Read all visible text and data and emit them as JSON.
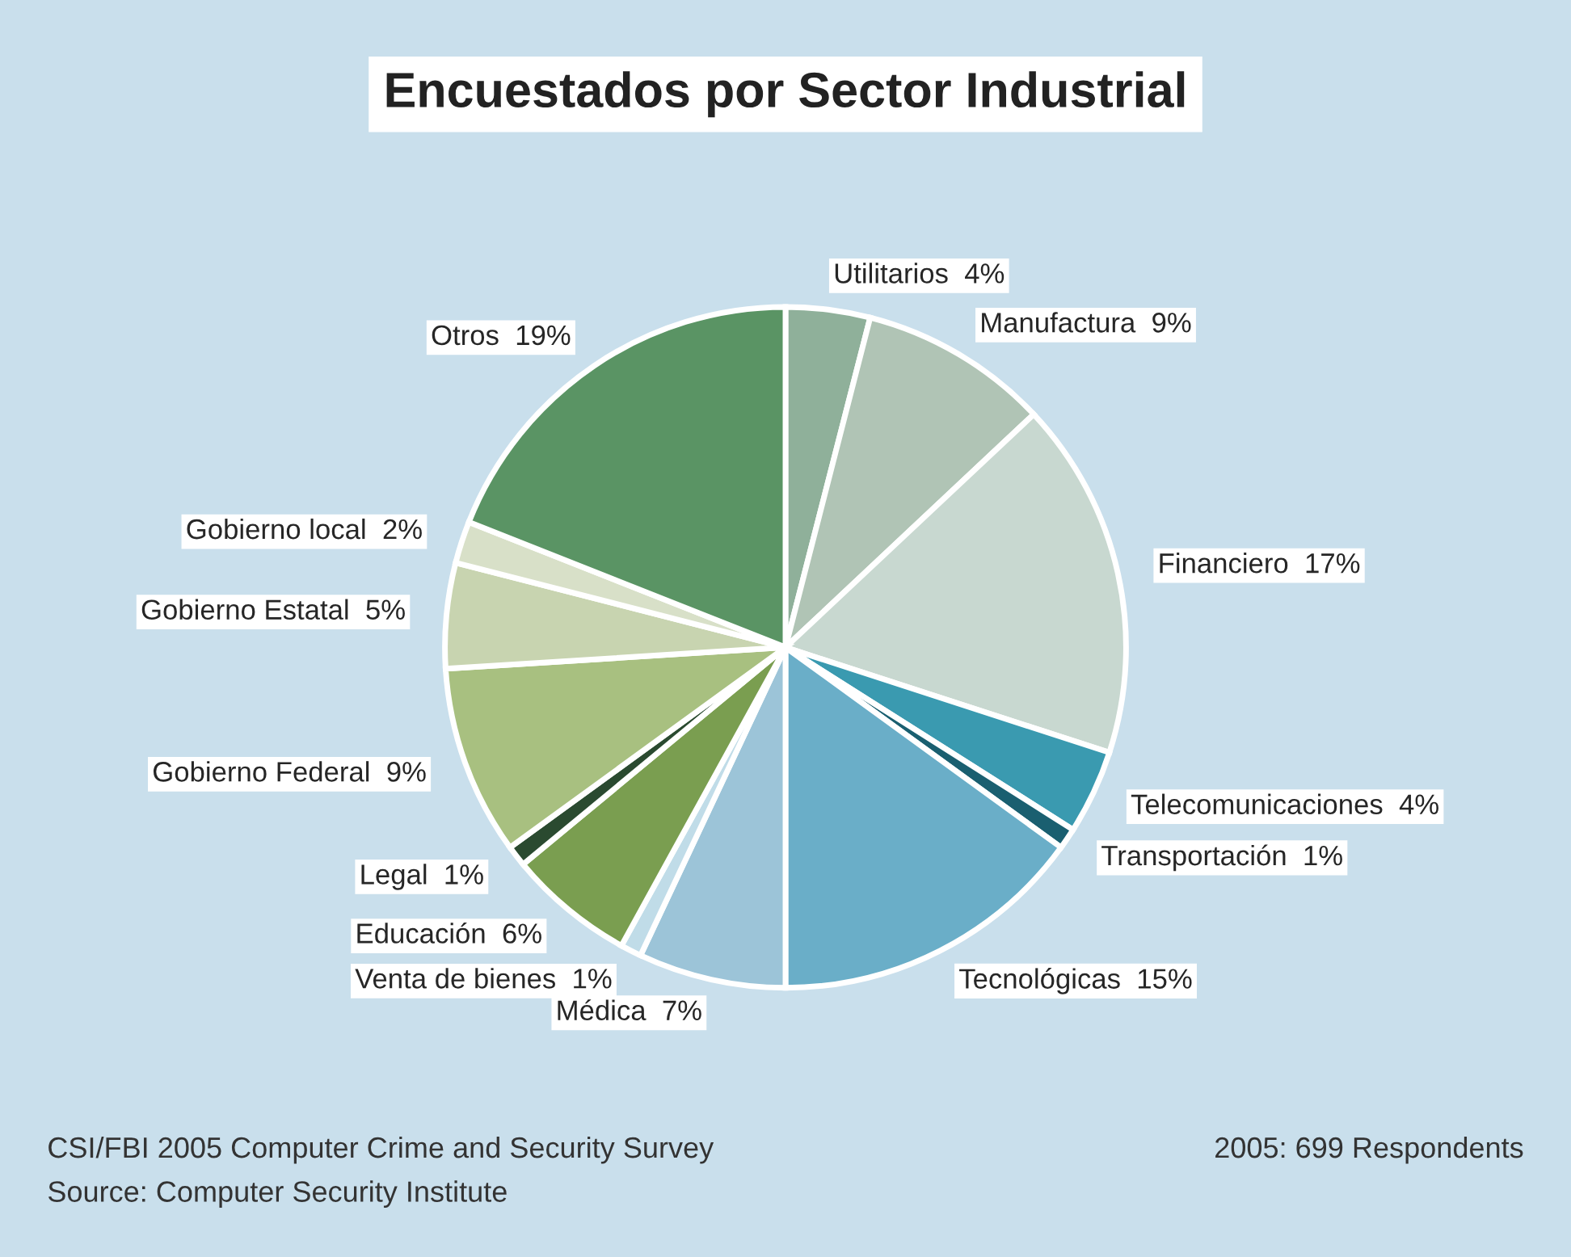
{
  "chart_data": {
    "type": "pie",
    "title": "Encuestados por Sector Industrial",
    "categories": [
      "Utilitarios",
      "Manufactura",
      "Financiero",
      "Telecomunicaciones",
      "Transportación",
      "Tecnológicas",
      "Médica",
      "Venta de bienes",
      "Educación",
      "Legal",
      "Gobierno Federal",
      "Gobierno Estatal",
      "Gobierno local",
      "Otros"
    ],
    "values": [
      4,
      9,
      17,
      4,
      1,
      15,
      7,
      1,
      6,
      1,
      9,
      5,
      2,
      19
    ],
    "value_labels": [
      "4%",
      "9%",
      "17%",
      "4%",
      "1%",
      "15%",
      "7%",
      "1%",
      "6%",
      "1%",
      "9%",
      "5%",
      "2%",
      "19%"
    ],
    "colors": [
      "#8fb09a",
      "#b0c4b5",
      "#c8d8d0",
      "#3a9ab0",
      "#1a5f70",
      "#6aaec8",
      "#9cc4d8",
      "#c0dce8",
      "#7a9e50",
      "#2a4a30",
      "#a8c080",
      "#c8d4b0",
      "#d8e0c8",
      "#5a9464"
    ],
    "annotations": [
      "CSI/FBI 2005 Computer Crime and Security Survey",
      "Source: Computer Security Institute",
      "2005: 699 Respondents"
    ]
  }
}
